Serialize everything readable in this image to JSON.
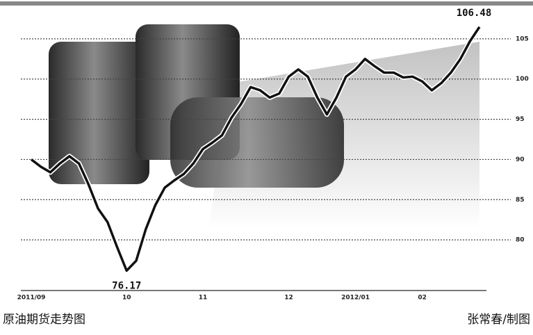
{
  "chart_data": {
    "type": "line",
    "categories": [
      "2011/09",
      null,
      null,
      null,
      null,
      null,
      null,
      null,
      null,
      null,
      "10",
      null,
      null,
      null,
      null,
      null,
      null,
      null,
      "11",
      null,
      null,
      null,
      null,
      null,
      null,
      null,
      null,
      "12",
      null,
      null,
      null,
      null,
      null,
      null,
      "2012/01",
      null,
      null,
      null,
      null,
      null,
      null,
      "02",
      null,
      null,
      null,
      null,
      null,
      null
    ],
    "values": [
      90.0,
      89.1,
      88.4,
      89.5,
      90.4,
      89.5,
      86.9,
      83.9,
      82.2,
      79.1,
      76.17,
      77.4,
      81.3,
      84.3,
      86.5,
      87.4,
      88.2,
      89.5,
      91.3,
      92.1,
      93.0,
      95.2,
      96.9,
      99.0,
      98.6,
      97.7,
      98.2,
      100.3,
      101.2,
      100.3,
      97.7,
      95.6,
      97.7,
      100.3,
      101.2,
      102.5,
      101.6,
      100.8,
      100.8,
      100.2,
      100.3,
      99.7,
      98.6,
      99.5,
      100.8,
      102.5,
      104.7,
      106.48
    ],
    "color": "#111111",
    "ylim": [
      73.7,
      109.4
    ],
    "yticks": [
      80,
      85,
      90,
      95,
      100,
      105
    ],
    "grid": true
  },
  "caption": "原油期货走势图",
  "credit": "张常春/制图"
}
